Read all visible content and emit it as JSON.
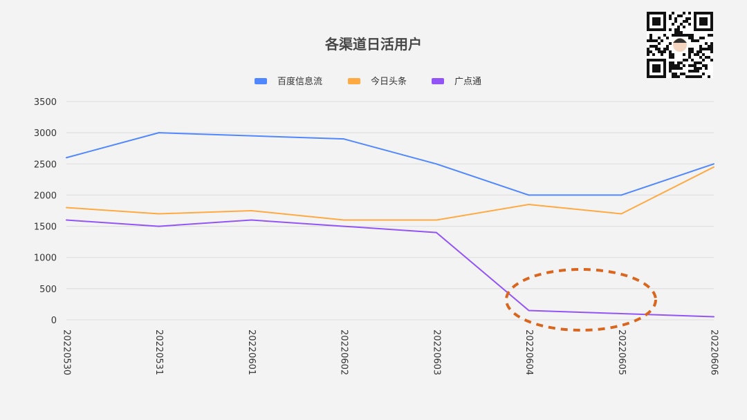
{
  "chart_data": {
    "type": "line",
    "title": "各渠道日活用户",
    "xlabel": "",
    "ylabel": "",
    "categories": [
      "20220530",
      "20220531",
      "20220601",
      "20220602",
      "20220603",
      "20220604",
      "20220605",
      "20220606"
    ],
    "ylim": [
      0,
      3500
    ],
    "yticks": [
      0,
      500,
      1000,
      1500,
      2000,
      2500,
      3000,
      3500
    ],
    "grid": true,
    "legend_position": "top-center",
    "series": [
      {
        "name": "百度信息流",
        "color": "#5087ff",
        "values": [
          2600,
          3000,
          2950,
          2900,
          2500,
          2000,
          2000,
          2500
        ]
      },
      {
        "name": "今日头条",
        "color": "#ffa940",
        "values": [
          1800,
          1700,
          1750,
          1600,
          1600,
          1850,
          1700,
          2450
        ]
      },
      {
        "name": "广点通",
        "color": "#9254f7",
        "values": [
          1600,
          1500,
          1600,
          1500,
          1400,
          150,
          100,
          50
        ]
      }
    ],
    "annotation": {
      "type": "dashed-ellipse",
      "color": "#d9661f",
      "around_categories": [
        "20220604",
        "20220605"
      ]
    }
  }
}
